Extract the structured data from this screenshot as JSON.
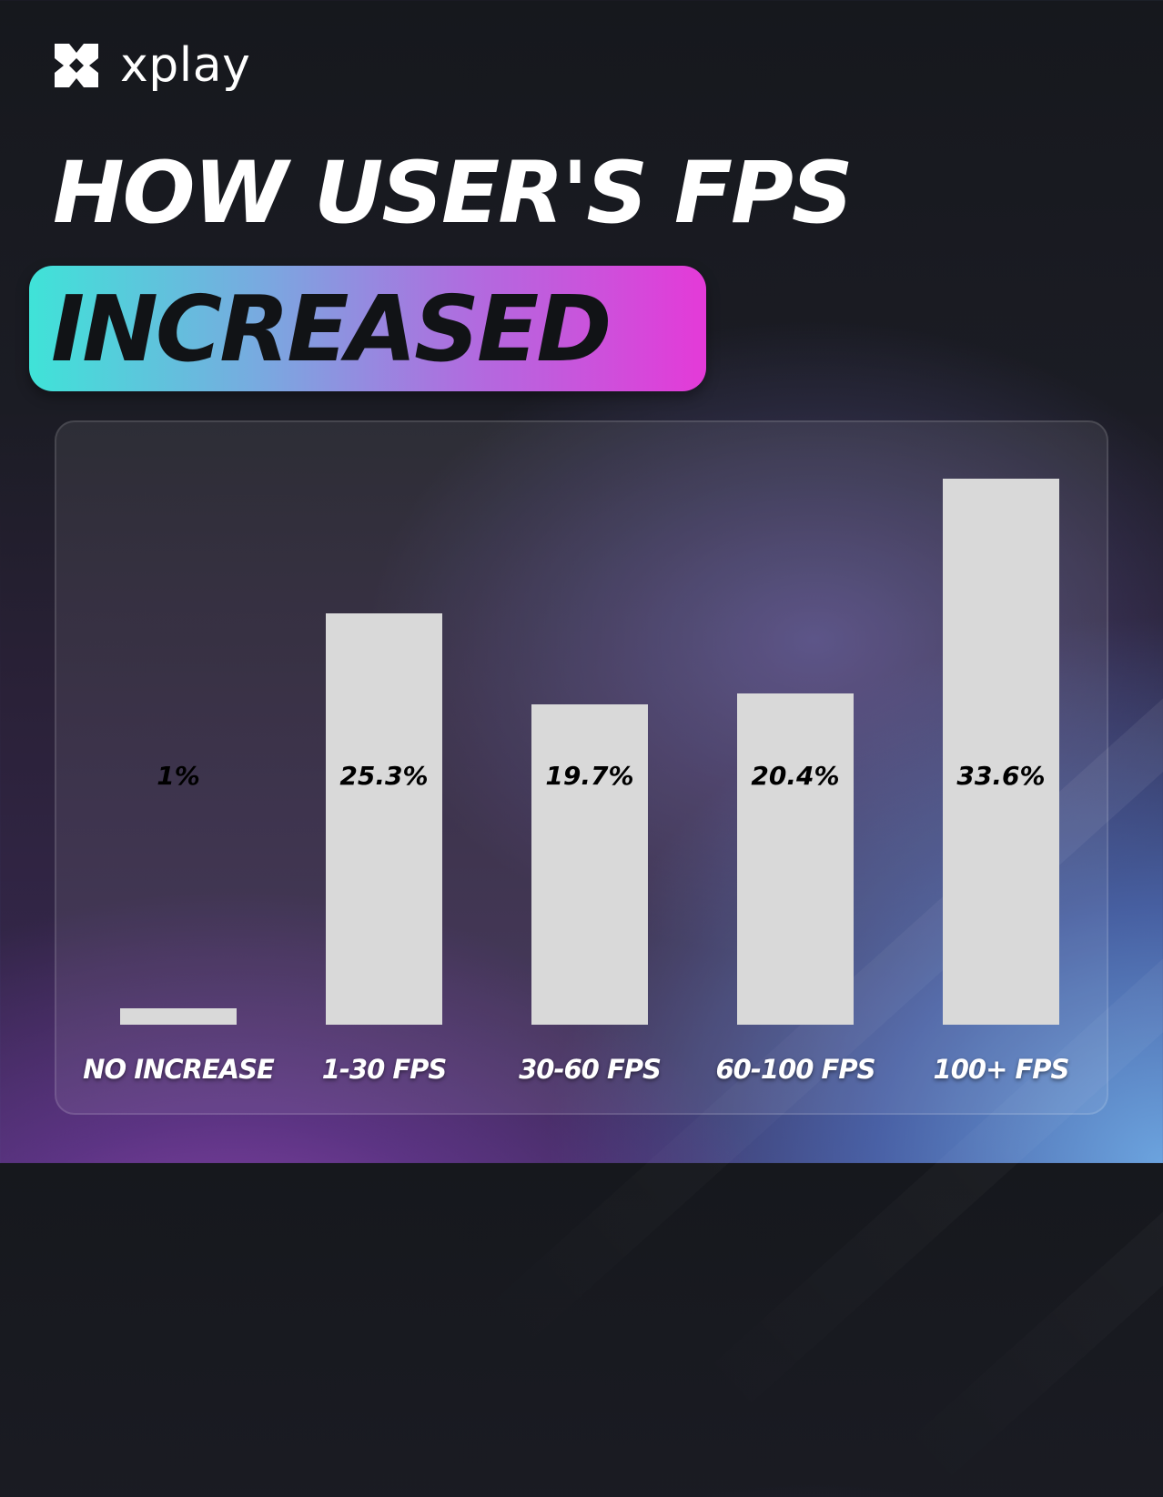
{
  "brand": {
    "name": "xplay",
    "logo_icon": "x-cross-logo-icon"
  },
  "headline": {
    "line1": "HOW USER'S FPS",
    "line2": "INCREASED"
  },
  "colors": {
    "bar": "#d9d9d9",
    "pill_start": "#3fe3d8",
    "pill_end": "#e43ad8",
    "text": "#ffffff"
  },
  "chart_data": {
    "type": "bar",
    "categories": [
      "NO INCREASE",
      "1-30 FPS",
      "30-60 FPS",
      "60-100 FPS",
      "100+ FPS"
    ],
    "values": [
      1,
      25.3,
      19.7,
      20.4,
      33.6
    ],
    "value_labels": [
      "1%",
      "25.3%",
      "19.7%",
      "20.4%",
      "33.6%"
    ],
    "ylim": [
      0,
      33.6
    ],
    "grid": false,
    "title": "",
    "xlabel": "",
    "ylabel": ""
  }
}
